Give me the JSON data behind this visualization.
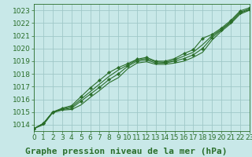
{
  "title": "Graphe pression niveau de la mer (hPa)",
  "bg_color": "#c8e8e8",
  "grid_color": "#a0c8c8",
  "line_color": "#2a6e2a",
  "marker_color": "#2a6e2a",
  "xlim": [
    0,
    23
  ],
  "ylim": [
    1013.5,
    1023.5
  ],
  "xticks": [
    0,
    1,
    2,
    3,
    4,
    5,
    6,
    7,
    8,
    9,
    10,
    11,
    12,
    13,
    14,
    15,
    16,
    17,
    18,
    19,
    20,
    21,
    22,
    23
  ],
  "yticks": [
    1014,
    1015,
    1016,
    1017,
    1018,
    1019,
    1020,
    1021,
    1022,
    1023
  ],
  "hours": [
    0,
    1,
    2,
    3,
    4,
    5,
    6,
    7,
    8,
    9,
    10,
    11,
    12,
    13,
    14,
    15,
    16,
    17,
    18,
    19,
    20,
    21,
    22,
    23
  ],
  "line_top": [
    1013.7,
    1014.1,
    1015.0,
    1015.3,
    1015.5,
    1016.2,
    1016.9,
    1017.5,
    1018.1,
    1018.5,
    1018.8,
    1019.15,
    1019.3,
    1019.0,
    1019.0,
    1019.2,
    1019.6,
    1019.9,
    1020.8,
    1021.1,
    1021.6,
    1022.2,
    1022.95,
    1023.2
  ],
  "line_upper": [
    1013.7,
    1014.1,
    1015.0,
    1015.25,
    1015.4,
    1016.0,
    1016.6,
    1017.2,
    1017.8,
    1018.3,
    1018.7,
    1019.1,
    1019.2,
    1018.95,
    1018.9,
    1019.1,
    1019.4,
    1019.7,
    1020.3,
    1021.0,
    1021.5,
    1022.1,
    1022.85,
    1023.1
  ],
  "line_mean": [
    1013.7,
    1014.1,
    1015.0,
    1015.2,
    1015.3,
    1015.85,
    1016.4,
    1016.95,
    1017.55,
    1018.0,
    1018.6,
    1019.0,
    1019.1,
    1018.85,
    1018.85,
    1019.0,
    1019.2,
    1019.5,
    1020.0,
    1020.85,
    1021.45,
    1022.05,
    1022.8,
    1023.05
  ],
  "line_lower": [
    1013.7,
    1014.0,
    1014.95,
    1015.15,
    1015.2,
    1015.55,
    1016.15,
    1016.7,
    1017.3,
    1017.7,
    1018.4,
    1018.85,
    1018.95,
    1018.75,
    1018.75,
    1018.85,
    1019.0,
    1019.3,
    1019.7,
    1020.65,
    1021.35,
    1021.95,
    1022.7,
    1023.0
  ],
  "title_fontsize": 8,
  "tick_fontsize": 6.5
}
